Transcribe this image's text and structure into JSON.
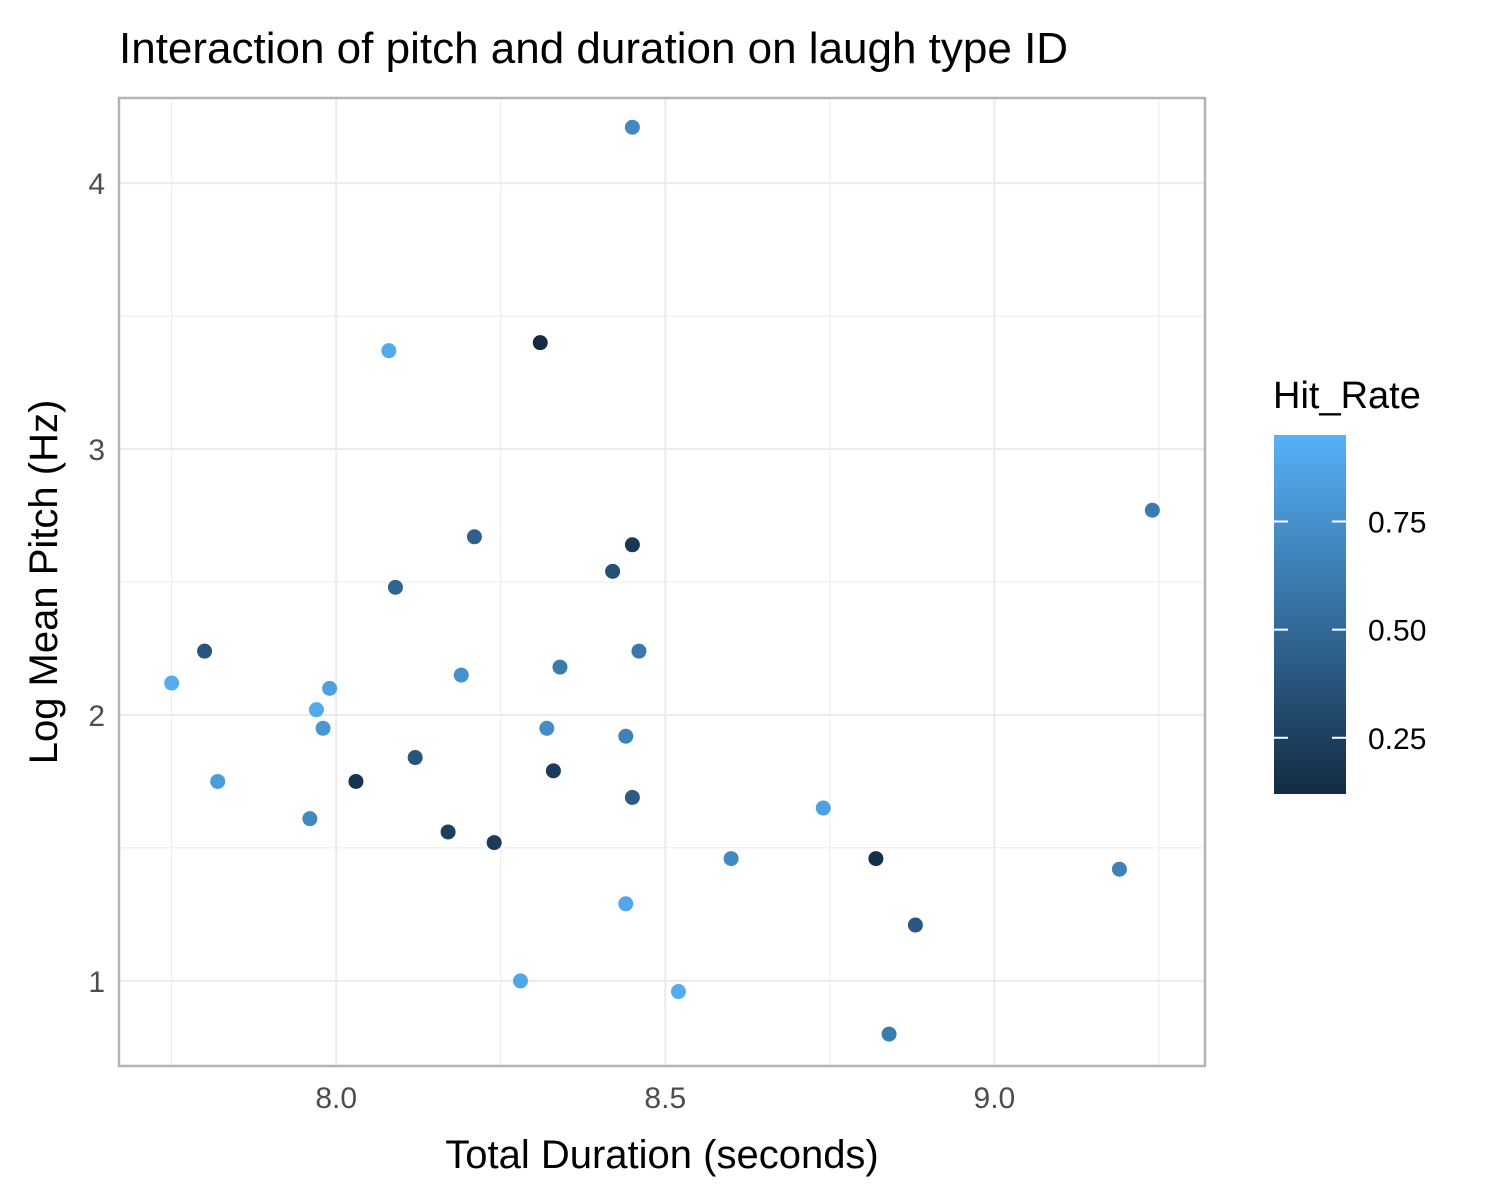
{
  "chart_data": {
    "type": "scatter",
    "title": "Interaction of pitch and duration on laugh type ID",
    "xlabel": "Total Duration (seconds)",
    "ylabel": "Log Mean Pitch (Hz)",
    "xlim": [
      7.67,
      9.32
    ],
    "ylim": [
      0.68,
      4.32
    ],
    "x_ticks": [
      8.0,
      8.5,
      9.0
    ],
    "x_tick_labels": [
      "8.0",
      "8.5",
      "9.0"
    ],
    "y_ticks": [
      1,
      2,
      3,
      4
    ],
    "y_tick_labels": [
      "1",
      "2",
      "3",
      "4"
    ],
    "grid": true,
    "legend": {
      "title": "Hit_Rate",
      "placement": "right",
      "type": "colorbar",
      "range": [
        0.12,
        0.95
      ],
      "breaks": [
        0.25,
        0.5,
        0.75
      ],
      "break_labels": [
        "0.25",
        "0.50",
        "0.75"
      ],
      "low_color": "#132B43",
      "high_color": "#56B1F7"
    },
    "points": [
      {
        "x": 8.45,
        "y": 4.21,
        "hit_rate": 0.7
      },
      {
        "x": 8.08,
        "y": 3.37,
        "hit_rate": 0.9
      },
      {
        "x": 8.31,
        "y": 3.4,
        "hit_rate": 0.12
      },
      {
        "x": 9.24,
        "y": 2.77,
        "hit_rate": 0.62
      },
      {
        "x": 8.21,
        "y": 2.67,
        "hit_rate": 0.45
      },
      {
        "x": 8.45,
        "y": 2.64,
        "hit_rate": 0.2
      },
      {
        "x": 8.42,
        "y": 2.54,
        "hit_rate": 0.35
      },
      {
        "x": 8.09,
        "y": 2.48,
        "hit_rate": 0.48
      },
      {
        "x": 7.8,
        "y": 2.24,
        "hit_rate": 0.38
      },
      {
        "x": 8.46,
        "y": 2.24,
        "hit_rate": 0.6
      },
      {
        "x": 8.34,
        "y": 2.18,
        "hit_rate": 0.62
      },
      {
        "x": 8.19,
        "y": 2.15,
        "hit_rate": 0.75
      },
      {
        "x": 7.75,
        "y": 2.12,
        "hit_rate": 0.92
      },
      {
        "x": 7.99,
        "y": 2.1,
        "hit_rate": 0.85
      },
      {
        "x": 7.97,
        "y": 2.02,
        "hit_rate": 0.9
      },
      {
        "x": 7.98,
        "y": 1.95,
        "hit_rate": 0.78
      },
      {
        "x": 8.32,
        "y": 1.95,
        "hit_rate": 0.72
      },
      {
        "x": 8.44,
        "y": 1.92,
        "hit_rate": 0.65
      },
      {
        "x": 8.12,
        "y": 1.84,
        "hit_rate": 0.38
      },
      {
        "x": 8.33,
        "y": 1.79,
        "hit_rate": 0.22
      },
      {
        "x": 7.82,
        "y": 1.75,
        "hit_rate": 0.82
      },
      {
        "x": 8.03,
        "y": 1.75,
        "hit_rate": 0.18
      },
      {
        "x": 8.45,
        "y": 1.69,
        "hit_rate": 0.42
      },
      {
        "x": 8.74,
        "y": 1.65,
        "hit_rate": 0.85
      },
      {
        "x": 7.96,
        "y": 1.61,
        "hit_rate": 0.7
      },
      {
        "x": 8.17,
        "y": 1.56,
        "hit_rate": 0.25
      },
      {
        "x": 8.24,
        "y": 1.52,
        "hit_rate": 0.22
      },
      {
        "x": 8.6,
        "y": 1.46,
        "hit_rate": 0.7
      },
      {
        "x": 8.82,
        "y": 1.46,
        "hit_rate": 0.15
      },
      {
        "x": 9.19,
        "y": 1.42,
        "hit_rate": 0.65
      },
      {
        "x": 8.44,
        "y": 1.29,
        "hit_rate": 0.88
      },
      {
        "x": 8.88,
        "y": 1.21,
        "hit_rate": 0.4
      },
      {
        "x": 8.28,
        "y": 1.0,
        "hit_rate": 0.88
      },
      {
        "x": 8.52,
        "y": 0.96,
        "hit_rate": 0.92
      },
      {
        "x": 8.84,
        "y": 0.8,
        "hit_rate": 0.62
      }
    ]
  }
}
